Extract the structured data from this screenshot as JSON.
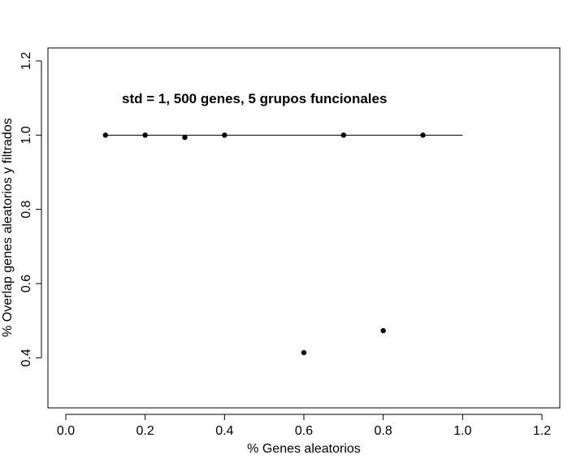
{
  "chart_data": {
    "type": "scatter",
    "title": "",
    "annotation": "std = 1, 500 genes, 5 grupos funcionales",
    "xlabel": "% Genes aleatorios",
    "ylabel": "% Overlap genes aleatorios y filtrados",
    "xlim": [
      -0.045,
      1.245
    ],
    "ylim": [
      0.265,
      1.235
    ],
    "x_ticks": [
      0.0,
      0.2,
      0.4,
      0.6,
      0.8,
      1.0,
      1.2
    ],
    "x_tick_labels": [
      "0.0",
      "0.2",
      "0.4",
      "0.6",
      "0.8",
      "1.0",
      "1.2"
    ],
    "y_ticks": [
      0.4,
      0.6,
      0.8,
      1.0,
      1.2
    ],
    "y_tick_labels": [
      "0.4",
      "0.6",
      "0.8",
      "1.0",
      "1.2"
    ],
    "grid": false,
    "points": [
      {
        "x": 0.1,
        "y": 1.0
      },
      {
        "x": 0.2,
        "y": 1.0
      },
      {
        "x": 0.3,
        "y": 0.994
      },
      {
        "x": 0.4,
        "y": 1.0
      },
      {
        "x": 0.6,
        "y": 0.414
      },
      {
        "x": 0.7,
        "y": 1.0
      },
      {
        "x": 0.8,
        "y": 0.473
      },
      {
        "x": 0.9,
        "y": 1.0
      }
    ],
    "reference_line": {
      "x": [
        0.1,
        1.0
      ],
      "y": [
        1.0,
        1.0
      ]
    },
    "colors": {
      "points": "#000000",
      "line": "#000000"
    }
  }
}
